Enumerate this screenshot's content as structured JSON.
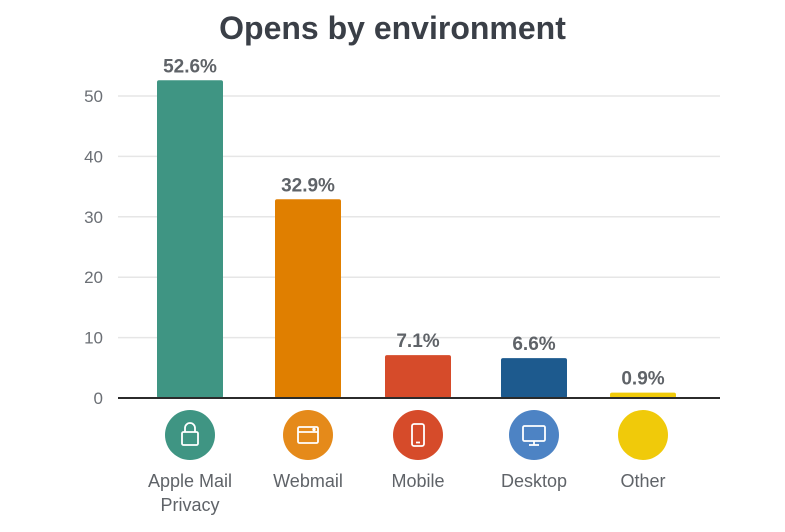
{
  "chart_data": {
    "type": "bar",
    "title": "Opens by environment",
    "xlabel": "",
    "ylabel": "",
    "ylim": [
      0,
      55
    ],
    "yticks": [
      0,
      10,
      20,
      30,
      40,
      50
    ],
    "grid": true,
    "categories": [
      "Apple Mail Privacy",
      "Webmail",
      "Mobile",
      "Desktop",
      "Other"
    ],
    "category_lines": [
      [
        "Apple Mail",
        "Privacy"
      ],
      [
        "Webmail"
      ],
      [
        "Mobile"
      ],
      [
        "Desktop"
      ],
      [
        "Other"
      ]
    ],
    "values": [
      52.6,
      32.9,
      7.1,
      6.6,
      0.9
    ],
    "data_labels": [
      "52.6%",
      "32.9%",
      "7.1%",
      "6.6%",
      "0.9%"
    ],
    "colors": [
      "#3f9583",
      "#e07f00",
      "#d64b2a",
      "#1d5a8e",
      "#f0ca0a"
    ],
    "icon_colors": [
      "#3f9583",
      "#e58a1a",
      "#d64b2a",
      "#4d83c4",
      "#f0ca0a"
    ],
    "icons": [
      "lock-icon",
      "browser-window-icon",
      "phone-icon",
      "desktop-monitor-icon",
      "none"
    ]
  }
}
